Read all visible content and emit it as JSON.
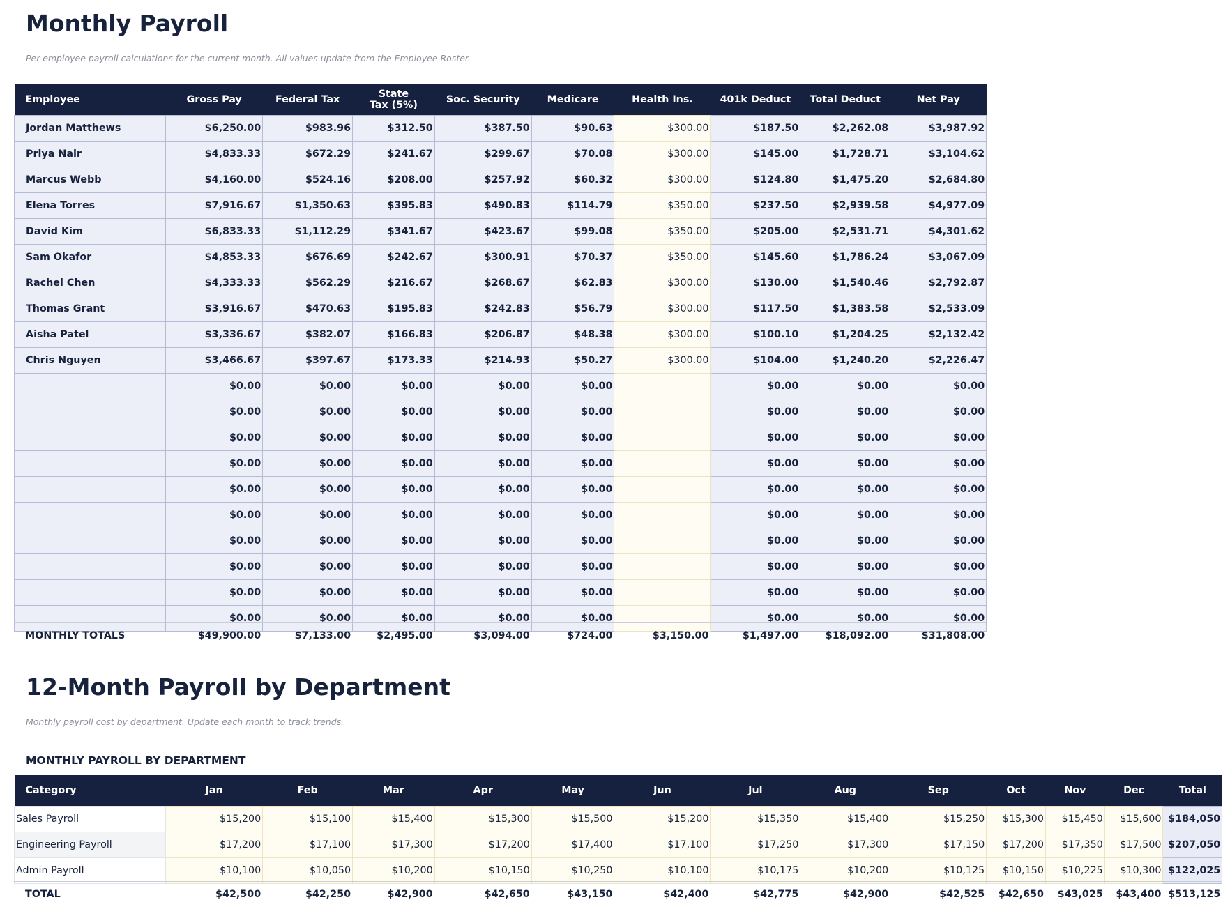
{
  "payroll": {
    "title": "Monthly Payroll",
    "subtitle": "Per-employee payroll calculations for the current month. All values update from the Employee Roster.",
    "headers": [
      "Employee",
      "Gross Pay",
      "Federal Tax",
      "State Tax (5%)",
      "Soc. Security",
      "Medicare",
      "Health Ins.",
      "401k Deduct",
      "Total Deduct",
      "Net Pay"
    ],
    "rows": [
      [
        "Jordan Matthews",
        "$6,250.00",
        "$983.96",
        "$312.50",
        "$387.50",
        "$90.63",
        "$300.00",
        "$187.50",
        "$2,262.08",
        "$3,987.92"
      ],
      [
        "Priya Nair",
        "$4,833.33",
        "$672.29",
        "$241.67",
        "$299.67",
        "$70.08",
        "$300.00",
        "$145.00",
        "$1,728.71",
        "$3,104.62"
      ],
      [
        "Marcus Webb",
        "$4,160.00",
        "$524.16",
        "$208.00",
        "$257.92",
        "$60.32",
        "$300.00",
        "$124.80",
        "$1,475.20",
        "$2,684.80"
      ],
      [
        "Elena Torres",
        "$7,916.67",
        "$1,350.63",
        "$395.83",
        "$490.83",
        "$114.79",
        "$350.00",
        "$237.50",
        "$2,939.58",
        "$4,977.09"
      ],
      [
        "David Kim",
        "$6,833.33",
        "$1,112.29",
        "$341.67",
        "$423.67",
        "$99.08",
        "$350.00",
        "$205.00",
        "$2,531.71",
        "$4,301.62"
      ],
      [
        "Sam Okafor",
        "$4,853.33",
        "$676.69",
        "$242.67",
        "$300.91",
        "$70.37",
        "$350.00",
        "$145.60",
        "$1,786.24",
        "$3,067.09"
      ],
      [
        "Rachel Chen",
        "$4,333.33",
        "$562.29",
        "$216.67",
        "$268.67",
        "$62.83",
        "$300.00",
        "$130.00",
        "$1,540.46",
        "$2,792.87"
      ],
      [
        "Thomas Grant",
        "$3,916.67",
        "$470.63",
        "$195.83",
        "$242.83",
        "$56.79",
        "$300.00",
        "$117.50",
        "$1,383.58",
        "$2,533.09"
      ],
      [
        "Aisha Patel",
        "$3,336.67",
        "$382.07",
        "$166.83",
        "$206.87",
        "$48.38",
        "$300.00",
        "$100.10",
        "$1,204.25",
        "$2,132.42"
      ],
      [
        "Chris Nguyen",
        "$3,466.67",
        "$397.67",
        "$173.33",
        "$214.93",
        "$50.27",
        "$300.00",
        "$104.00",
        "$1,240.20",
        "$2,226.47"
      ],
      [
        null,
        "$0.00",
        "$0.00",
        "$0.00",
        "$0.00",
        "$0.00",
        null,
        "$0.00",
        "$0.00",
        "$0.00"
      ],
      [
        null,
        "$0.00",
        "$0.00",
        "$0.00",
        "$0.00",
        "$0.00",
        null,
        "$0.00",
        "$0.00",
        "$0.00"
      ],
      [
        null,
        "$0.00",
        "$0.00",
        "$0.00",
        "$0.00",
        "$0.00",
        null,
        "$0.00",
        "$0.00",
        "$0.00"
      ],
      [
        null,
        "$0.00",
        "$0.00",
        "$0.00",
        "$0.00",
        "$0.00",
        null,
        "$0.00",
        "$0.00",
        "$0.00"
      ],
      [
        null,
        "$0.00",
        "$0.00",
        "$0.00",
        "$0.00",
        "$0.00",
        null,
        "$0.00",
        "$0.00",
        "$0.00"
      ],
      [
        null,
        "$0.00",
        "$0.00",
        "$0.00",
        "$0.00",
        "$0.00",
        null,
        "$0.00",
        "$0.00",
        "$0.00"
      ],
      [
        null,
        "$0.00",
        "$0.00",
        "$0.00",
        "$0.00",
        "$0.00",
        null,
        "$0.00",
        "$0.00",
        "$0.00"
      ],
      [
        null,
        "$0.00",
        "$0.00",
        "$0.00",
        "$0.00",
        "$0.00",
        null,
        "$0.00",
        "$0.00",
        "$0.00"
      ],
      [
        null,
        "$0.00",
        "$0.00",
        "$0.00",
        "$0.00",
        "$0.00",
        null,
        "$0.00",
        "$0.00",
        "$0.00"
      ],
      [
        null,
        "$0.00",
        "$0.00",
        "$0.00",
        "$0.00",
        "$0.00",
        null,
        "$0.00",
        "$0.00",
        "$0.00"
      ]
    ],
    "totals": [
      "MONTHLY TOTALS",
      "$49,900.00",
      "$7,133.00",
      "$2,495.00",
      "$3,094.00",
      "$724.00",
      "$3,150.00",
      "$1,497.00",
      "$18,092.00",
      "$31,808.00"
    ]
  },
  "department": {
    "title": "12-Month Payroll by Department",
    "subtitle": "Monthly payroll cost by department. Update each month to track trends.",
    "section_title": "MONTHLY PAYROLL BY DEPARTMENT",
    "headers": [
      "Category",
      "Jan",
      "Feb",
      "Mar",
      "Apr",
      "May",
      "Jun",
      "Jul",
      "Aug",
      "Sep",
      "Oct",
      "Nov",
      "Dec",
      "Total"
    ],
    "rows": [
      [
        "Sales Payroll",
        "$15,200",
        "$15,100",
        "$15,400",
        "$15,300",
        "$15,500",
        "$15,200",
        "$15,350",
        "$15,400",
        "$15,250",
        "$15,300",
        "$15,450",
        "$15,600",
        "$184,050"
      ],
      [
        "Engineering Payroll",
        "$17,200",
        "$17,100",
        "$17,300",
        "$17,200",
        "$17,400",
        "$17,100",
        "$17,250",
        "$17,300",
        "$17,150",
        "$17,200",
        "$17,350",
        "$17,500",
        "$207,050"
      ],
      [
        "Admin Payroll",
        "$10,100",
        "$10,050",
        "$10,200",
        "$10,150",
        "$10,250",
        "$10,100",
        "$10,175",
        "$10,200",
        "$10,125",
        "$10,150",
        "$10,225",
        "$10,300",
        "$122,025"
      ]
    ],
    "totals": [
      "TOTAL",
      "$42,500",
      "$42,250",
      "$42,900",
      "$42,650",
      "$43,150",
      "$42,400",
      "$42,775",
      "$42,900",
      "$42,525",
      "$42,650",
      "$43,025",
      "$43,400",
      "$513,125"
    ]
  }
}
